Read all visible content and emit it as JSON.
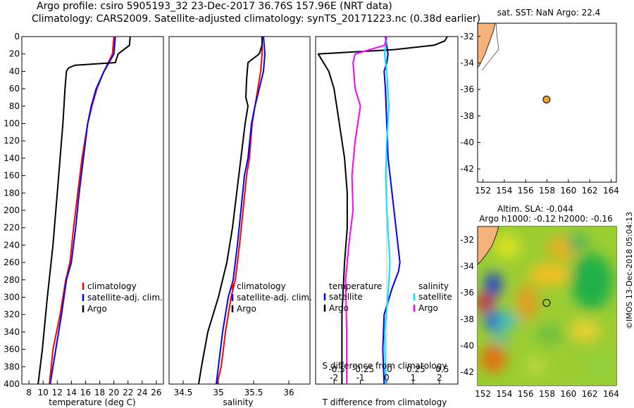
{
  "titles": {
    "line1": "Argo profile: csiro 5905193_32 23-Dec-2017 36.76S 157.96E (NRT data)",
    "line2": "Climatology: CARS2009. Satellite-adjusted climatology: synTS_20171223.nc (0.38d earlier)"
  },
  "colors": {
    "climatology": "#ff0000",
    "satellite": "#0000ff",
    "argo": "#000000",
    "s_sat": "#00e5ff",
    "s_argo": "#ff00ff",
    "land": "#f5b27a"
  },
  "chart_data": [
    {
      "id": "temperature",
      "type": "line",
      "xlabel": "temperature (deg C)",
      "ylabel": "",
      "xlim": [
        7,
        27
      ],
      "ylim": [
        400,
        0
      ],
      "xticks": [
        "8",
        "10",
        "12",
        "14",
        "16",
        "18",
        "20",
        "22",
        "24",
        "26"
      ],
      "yticks": [
        "0",
        "20",
        "40",
        "60",
        "80",
        "100",
        "120",
        "140",
        "160",
        "180",
        "200",
        "220",
        "240",
        "260",
        "280",
        "300",
        "320",
        "340",
        "360",
        "380",
        "400"
      ],
      "legend": [
        "climatology",
        "satellite-adj. clim.",
        "Argo"
      ],
      "series": [
        {
          "name": "climatology",
          "color": "#ff0000",
          "x": [
            20.0,
            19.8,
            18.6,
            17.6,
            16.9,
            16.3,
            15.5,
            14.9,
            14.3,
            13.8,
            13.2,
            12.4,
            11.4,
            10.9
          ],
          "y": [
            0,
            20,
            40,
            60,
            80,
            100,
            140,
            180,
            220,
            260,
            280,
            320,
            360,
            400
          ]
        },
        {
          "name": "satellite-adj. clim.",
          "color": "#0000ff",
          "x": [
            20.2,
            20.0,
            18.6,
            17.5,
            16.8,
            16.3,
            15.7,
            15.1,
            14.6,
            14.0,
            13.3,
            12.6,
            11.8,
            11.0
          ],
          "y": [
            0,
            20,
            40,
            60,
            80,
            100,
            140,
            180,
            220,
            260,
            280,
            320,
            360,
            400
          ]
        },
        {
          "name": "Argo",
          "color": "#000000",
          "x": [
            22.3,
            22.2,
            20.6,
            20.2,
            14.5,
            13.6,
            13.3,
            13.1,
            12.8,
            12.4,
            12.0,
            11.4,
            10.6,
            9.9,
            9.3
          ],
          "y": [
            0,
            10,
            20,
            30,
            33,
            36,
            40,
            60,
            100,
            140,
            180,
            240,
            300,
            360,
            400
          ]
        }
      ]
    },
    {
      "id": "salinity",
      "type": "line",
      "xlabel": "salinity",
      "xlim": [
        34.3,
        36.3
      ],
      "ylim": [
        400,
        0
      ],
      "xticks": [
        "34.5",
        "35",
        "35.5",
        "36"
      ],
      "legend": [
        "climatology",
        "satellite-adj. clim.",
        "Argo"
      ],
      "series": [
        {
          "name": "climatology",
          "color": "#ff0000",
          "x": [
            35.62,
            35.62,
            35.6,
            35.56,
            35.52,
            35.48,
            35.44,
            35.4,
            35.35,
            35.3,
            35.24,
            35.18,
            35.1,
            35.04,
            34.98
          ],
          "y": [
            0,
            20,
            40,
            60,
            80,
            100,
            140,
            160,
            200,
            240,
            280,
            300,
            340,
            380,
            400
          ]
        },
        {
          "name": "satellite-adj. clim.",
          "color": "#0000ff",
          "x": [
            35.64,
            35.66,
            35.64,
            35.58,
            35.52,
            35.47,
            35.42,
            35.37,
            35.32,
            35.27,
            35.21,
            35.14,
            35.06,
            35.0,
            34.97
          ],
          "y": [
            0,
            20,
            40,
            60,
            80,
            100,
            140,
            160,
            200,
            240,
            280,
            300,
            340,
            380,
            400
          ]
        },
        {
          "name": "Argo",
          "color": "#000000",
          "x": [
            35.62,
            35.62,
            35.58,
            35.42,
            35.4,
            35.39,
            35.42,
            35.38,
            35.32,
            35.26,
            35.2,
            35.12,
            35.0,
            34.85,
            34.76,
            34.72
          ],
          "y": [
            0,
            10,
            20,
            30,
            50,
            70,
            80,
            100,
            140,
            180,
            220,
            260,
            300,
            340,
            380,
            400
          ]
        }
      ]
    },
    {
      "id": "difference",
      "type": "line",
      "xlabel": "T difference from climatology",
      "xlabel_top": "S difference from climatology",
      "xlim": [
        -2.7,
        2.7
      ],
      "ylim": [
        400,
        0
      ],
      "xticks_bottom": [
        "-2",
        "-1",
        "0",
        "1",
        "2"
      ],
      "xticks_top": [
        "-0.5",
        "-0.25",
        "0",
        "0.25",
        "0.5"
      ],
      "legend_temperature_title": "temperature",
      "legend_salinity_title": "salinity",
      "legend_entries": [
        "satellite",
        "Argo",
        "satellite",
        "Argo"
      ],
      "series": [
        {
          "name": "T satellite",
          "color": "#0000ff",
          "x": [
            -0.05,
            0.0,
            0.05,
            0.0,
            -0.1,
            -0.05,
            0.0,
            0.05,
            0.2,
            0.35,
            0.5,
            0.45,
            0.2,
            -0.1,
            -0.15,
            -0.1
          ],
          "y": [
            0,
            10,
            20,
            30,
            40,
            60,
            100,
            140,
            180,
            220,
            260,
            270,
            290,
            320,
            360,
            400
          ]
        },
        {
          "name": "T Argo",
          "color": "#000000",
          "x": [
            2.3,
            2.2,
            1.8,
            0.3,
            -2.6,
            -2.4,
            -2.2,
            -2.0,
            -1.8,
            -1.6,
            -1.5,
            -1.5,
            -1.6,
            -1.7,
            -1.7
          ],
          "y": [
            0,
            5,
            10,
            15,
            20,
            30,
            40,
            60,
            100,
            140,
            180,
            220,
            260,
            320,
            400
          ]
        },
        {
          "name": "S satellite",
          "color": "#00e5ff",
          "x": [
            0.0,
            -0.02,
            0.0,
            0.02,
            0.0,
            -0.01,
            0.0,
            0.02,
            0.03,
            0.01,
            -0.02,
            -0.01
          ],
          "y": [
            0,
            20,
            40,
            80,
            120,
            160,
            200,
            240,
            260,
            300,
            340,
            400
          ]
        },
        {
          "name": "S Argo",
          "color": "#ff00ff",
          "x": [
            0.0,
            -0.02,
            -0.3,
            -0.32,
            -0.3,
            -0.25,
            -0.3,
            -0.33,
            -0.32,
            -0.36,
            -0.39,
            -0.38,
            -0.38
          ],
          "y": [
            0,
            10,
            20,
            30,
            60,
            80,
            120,
            160,
            200,
            240,
            280,
            340,
            400
          ]
        }
      ]
    },
    {
      "id": "map-sst",
      "type": "scatter",
      "title": "sat. SST: NaN Argo: 22.4",
      "xlim": [
        151.5,
        164.5
      ],
      "ylim": [
        -43,
        -31
      ],
      "xticks": [
        "152",
        "154",
        "156",
        "158",
        "160",
        "162",
        "164"
      ],
      "yticks": [
        "-32",
        "-34",
        "-36",
        "-38",
        "-40",
        "-42"
      ],
      "x": [
        157.96
      ],
      "y": [
        -36.76
      ]
    },
    {
      "id": "map-sla",
      "type": "heatmap",
      "title_line1": "Altim. SLA: -0.044",
      "title_line2": "Argo h1000: -0.12 h2000: -0.16",
      "xlim": [
        151.5,
        164.5
      ],
      "ylim": [
        -43,
        -31
      ],
      "xticks": [
        "152",
        "154",
        "156",
        "158",
        "160",
        "162",
        "164"
      ],
      "yticks": [
        "-32",
        "-34",
        "-36",
        "-38",
        "-40",
        "-42"
      ],
      "x": [
        157.96
      ],
      "y": [
        -36.76
      ]
    }
  ],
  "credit": "©IMOS 13-Dec-2018 05:04:13"
}
